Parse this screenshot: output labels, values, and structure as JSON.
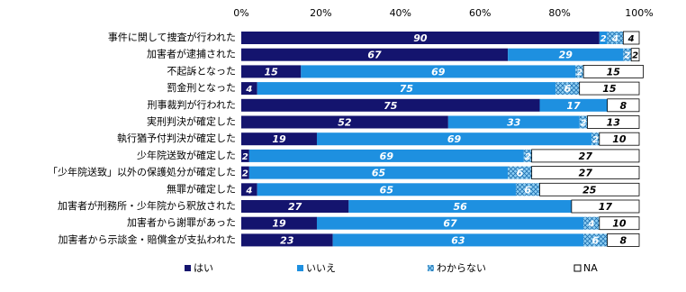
{
  "chart_data": {
    "type": "stacked-bar-horizontal",
    "categories": [
      "事件に関して捜査が行われた",
      "加害者が逮捕された",
      "不起訴となった",
      "罰金刑となった",
      "刑事裁判が行われた",
      "実刑判決が確定した",
      "執行猶予付判決が確定した",
      "少年院送致が確定した",
      "「少年院送致」以外の保護処分が確定した",
      "無罪が確定した",
      "加害者が刑務所・少年院から釈放された",
      "加害者から謝罪があった",
      "加害者から示談金・賠償金が支払われた"
    ],
    "series": [
      {
        "name": "はい",
        "color": "#14146e",
        "label_color": "#ffffff",
        "values": [
          90,
          67,
          15,
          4,
          75,
          52,
          19,
          2,
          2,
          4,
          27,
          19,
          23
        ]
      },
      {
        "name": "いいえ",
        "color": "#1e90e0",
        "label_color": "#ffffff",
        "values": [
          2,
          29,
          69,
          75,
          17,
          33,
          69,
          69,
          65,
          65,
          56,
          67,
          63
        ]
      },
      {
        "name": "わからない",
        "color": "#8fd0f5",
        "hatch": true,
        "label_color": "#ffffff",
        "values": [
          4,
          2,
          2,
          6,
          null,
          2,
          2,
          2,
          6,
          6,
          null,
          4,
          6
        ]
      },
      {
        "name": "NA",
        "color": "#ffffff",
        "label_color": "#000000",
        "values": [
          4,
          2,
          15,
          15,
          8,
          13,
          10,
          27,
          27,
          25,
          17,
          10,
          8
        ]
      }
    ],
    "xlim": [
      0,
      100
    ],
    "xticks": [
      {
        "value": 0,
        "label": "0%"
      },
      {
        "value": 20,
        "label": "20%"
      },
      {
        "value": 40,
        "label": "40%"
      },
      {
        "value": 60,
        "label": "60%"
      },
      {
        "value": 80,
        "label": "80%"
      },
      {
        "value": 100,
        "label": "100%"
      }
    ],
    "legend": "bottom"
  }
}
